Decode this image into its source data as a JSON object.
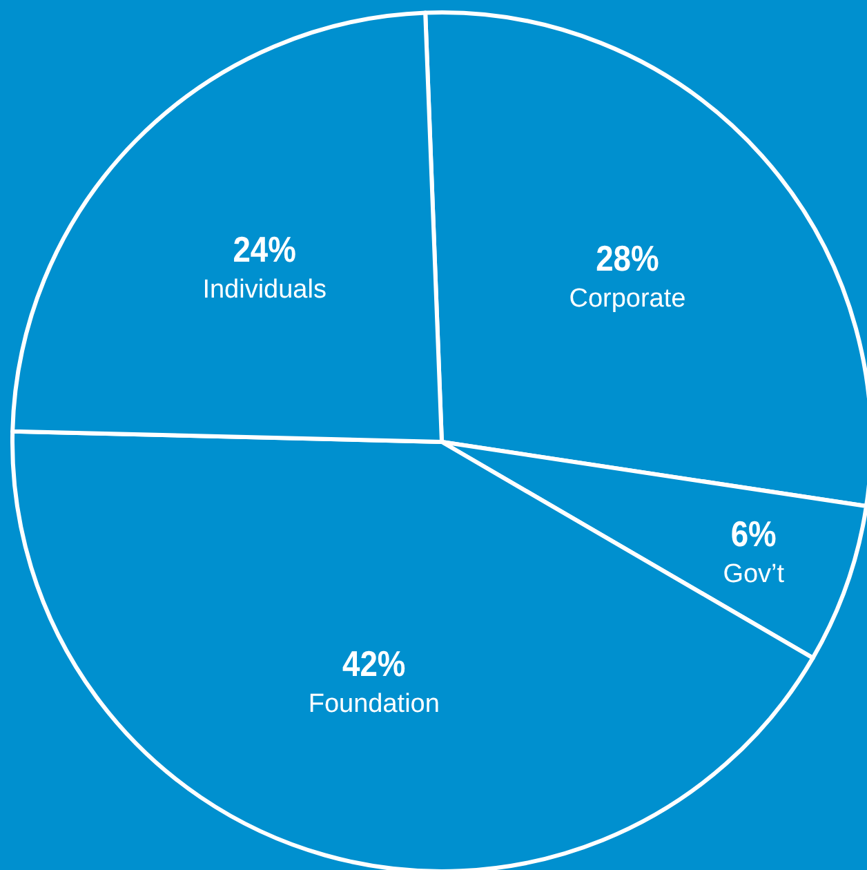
{
  "chart_data": {
    "type": "pie",
    "categories": [
      "Corporate",
      "Gov’t",
      "Foundation",
      "Individuals"
    ],
    "values": [
      28,
      6,
      42,
      24
    ],
    "value_labels": [
      "28%",
      "6%",
      "42%",
      "24%"
    ],
    "colors": [
      "#0090cf",
      "#0090cf",
      "#0090cf",
      "#0090cf"
    ]
  }
}
